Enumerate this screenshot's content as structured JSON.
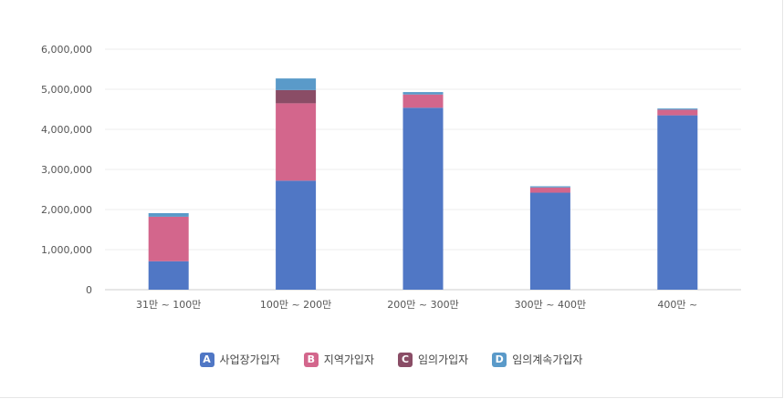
{
  "chart_data": {
    "type": "bar",
    "stacked": true,
    "categories": [
      "31만 ~ 100만",
      "100만 ~ 200만",
      "200만 ~ 300만",
      "300만 ~ 400만",
      "400만 ~"
    ],
    "series": [
      {
        "name": "사업장가입자",
        "badge": "A",
        "color": "#5077c5",
        "values": [
          710000,
          2720000,
          4540000,
          2420000,
          4350000
        ]
      },
      {
        "name": "지역가입자",
        "badge": "B",
        "color": "#d3668c",
        "values": [
          1110000,
          1930000,
          330000,
          130000,
          140000
        ]
      },
      {
        "name": "임의가입자",
        "badge": "C",
        "color": "#8a4d66",
        "values": [
          0,
          330000,
          0,
          0,
          0
        ]
      },
      {
        "name": "임의계속가입자",
        "badge": "D",
        "color": "#5a9ac9",
        "values": [
          90000,
          290000,
          60000,
          30000,
          30000
        ]
      }
    ],
    "y_ticks": [
      "0",
      "1,000,000",
      "2,000,000",
      "3,000,000",
      "4,000,000",
      "5,000,000",
      "6,000,000"
    ],
    "ylim": [
      0,
      6000000
    ],
    "grid": true,
    "legend_position": "bottom-center",
    "title": "",
    "xlabel": "",
    "ylabel": ""
  }
}
